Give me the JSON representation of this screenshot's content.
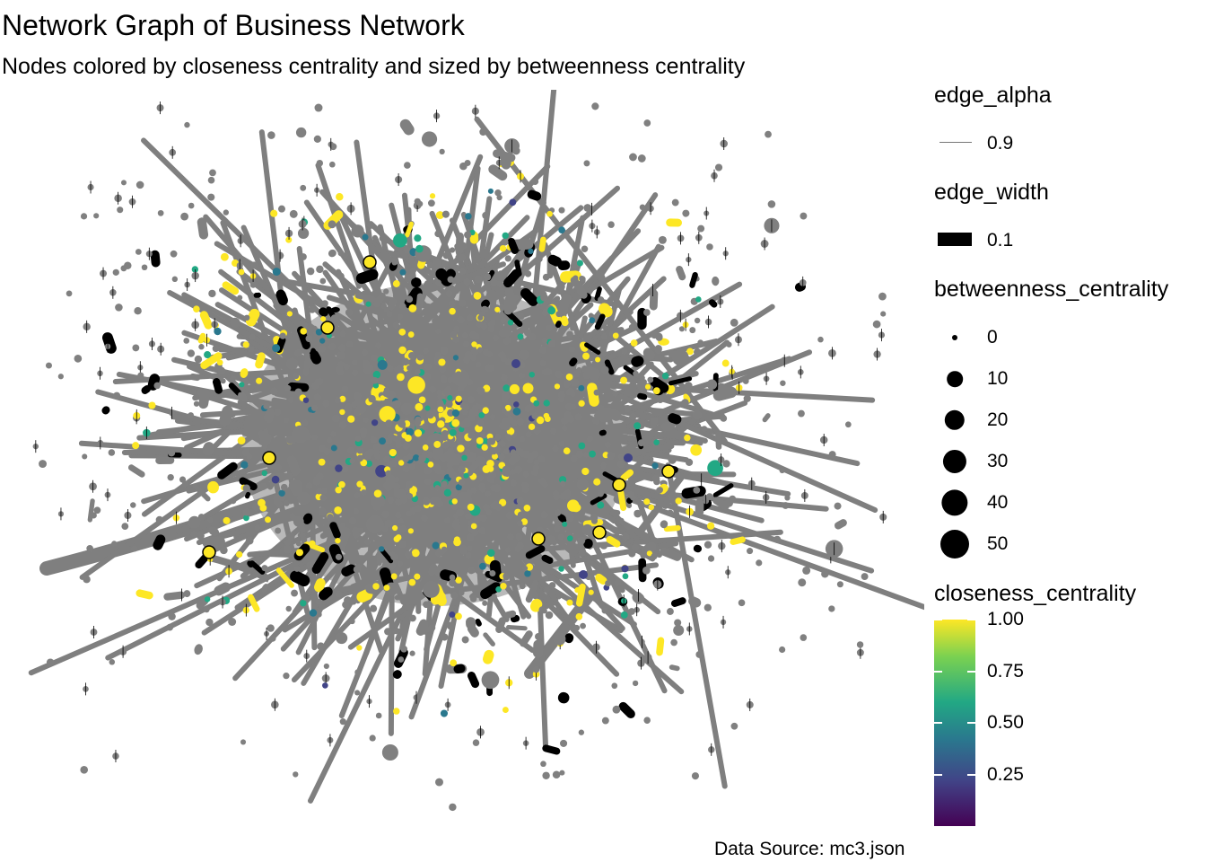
{
  "title": "Network Graph of Business Network",
  "subtitle": "Nodes colored by closeness centrality and sized by betweenness centrality",
  "caption": "Data Source: mc3.json",
  "colors": {
    "background": "#FFFFFF",
    "edge": "#7F7F7F",
    "node_default": "#808080",
    "viridis": [
      "#440154",
      "#414487",
      "#2A788E",
      "#22A884",
      "#7AD151",
      "#FDE725"
    ]
  },
  "legend": {
    "edge_alpha": {
      "title": "edge_alpha",
      "label": "0.9"
    },
    "edge_width": {
      "title": "edge_width",
      "label": "0.1"
    },
    "betweenness": {
      "title": "betweenness_centrality",
      "labels": [
        "0",
        "10",
        "20",
        "30",
        "40",
        "50"
      ],
      "values": [
        0,
        10,
        20,
        30,
        40,
        50
      ]
    },
    "closeness": {
      "title": "closeness_centrality",
      "labels": [
        "1.00",
        "0.75",
        "0.50",
        "0.25"
      ],
      "values": [
        1.0,
        0.75,
        0.5,
        0.25
      ],
      "range": [
        0,
        1
      ]
    }
  }
}
